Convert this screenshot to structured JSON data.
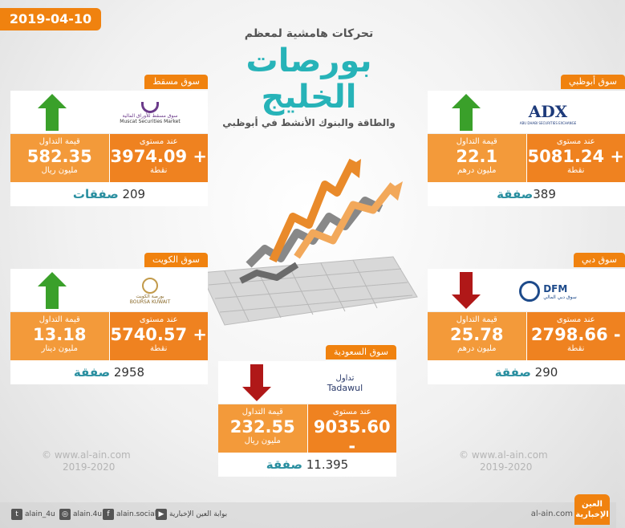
{
  "date": "2019-04-10",
  "headline": {
    "top": "تحركات هامشية لمعظم",
    "big1": "بورصات",
    "big2": "الخليج",
    "bottom": "والطاقة والبنوك الأنشط في أبوظبي"
  },
  "labels": {
    "level": "عند مستوى",
    "points": "نقطة",
    "trading_value": "قيمة التداول"
  },
  "markets": {
    "muscat": {
      "name": "سوق مسقط",
      "logo_ar": "سوق مسقط للأوراق المالية",
      "logo_en": "Muscat Securities Market",
      "level": "3974.09 +",
      "value": "582.35",
      "unit": "مليون ريال",
      "deals_num": "209",
      "deals_word": "صفقات",
      "direction": "up"
    },
    "abudhabi": {
      "name": "سوق أبوظبي",
      "logo_en": "ADX",
      "logo_sub": "ABU DHABI SECURITIES EXCHANGE",
      "level": "5081.24 +",
      "value": "22.1",
      "unit": "مليون درهم",
      "deals_num": "389",
      "deals_word": "صفقة",
      "direction": "up"
    },
    "kuwait": {
      "name": "سوق الكويت",
      "logo_ar": "بورصة الكويت",
      "logo_en": "BOURSA KUWAIT",
      "level": "5740.57 +",
      "value": "13.18",
      "unit": "مليون دينار",
      "deals_num": "2958",
      "deals_word": "صفقة",
      "direction": "up"
    },
    "dubai": {
      "name": "سوق دبي",
      "logo_en": "DFM",
      "logo_ar": "سوق دبي المالي",
      "level": "2798.66 -",
      "value": "25.78",
      "unit": "مليون درهم",
      "deals_num": "290",
      "deals_word": "صفقة",
      "direction": "down"
    },
    "saudi": {
      "name": "سوق السعودية",
      "logo_ar": "تداول",
      "logo_en": "Tadawul",
      "level": "9035.60 -",
      "value": "232.55",
      "unit": "مليون ريال",
      "deals_num": "11.395",
      "deals_word": "صفقة",
      "direction": "down"
    }
  },
  "watermark": {
    "site": "© www.al-ain.com",
    "year": "2019-2020"
  },
  "footer": {
    "twitter": "alain_4u",
    "instagram": "alain.4u",
    "facebook": "alain.social",
    "youtube": "بوابة العين الإخبارية",
    "site": "al-ain.com",
    "brand_line1": "العين",
    "brand_line2": "الإخبارية"
  },
  "colors": {
    "accent": "#f0820f",
    "up": "#3aa02a",
    "down": "#b01818",
    "title": "#27b3b8"
  },
  "icons": [
    "up-arrow-icon",
    "down-arrow-icon",
    "twitter-icon",
    "instagram-icon",
    "facebook-icon",
    "youtube-icon"
  ]
}
